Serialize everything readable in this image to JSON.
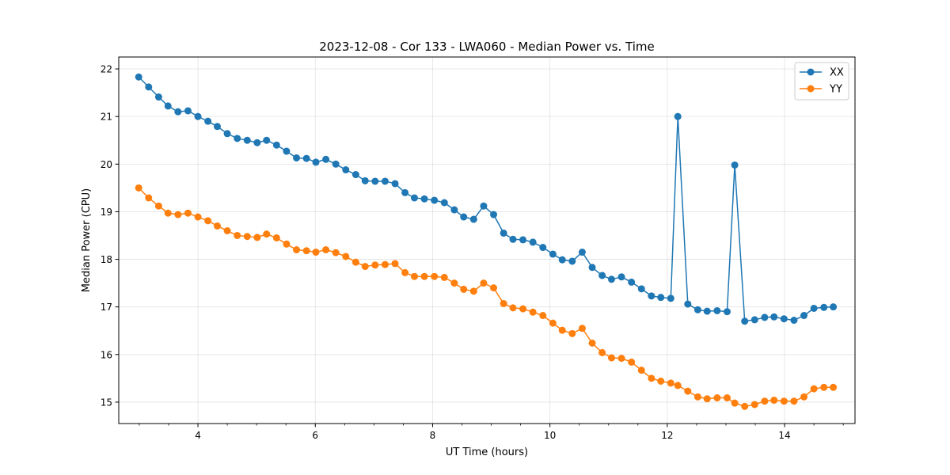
{
  "chart_data": {
    "type": "line",
    "title": "2023-12-08 - Cor 133 - LWA060 - Median Power vs. Time",
    "xlabel": "UT Time (hours)",
    "ylabel": "Median Power (CPU)",
    "xlim": [
      2.65,
      15.2
    ],
    "ylim": [
      14.55,
      22.25
    ],
    "xticks": [
      4,
      6,
      8,
      10,
      12,
      14
    ],
    "yticks": [
      15,
      16,
      17,
      18,
      19,
      20,
      21,
      22
    ],
    "grid": true,
    "legend_position": "top-right",
    "x": [
      2.99,
      3.16,
      3.33,
      3.49,
      3.66,
      3.83,
      4.0,
      4.17,
      4.33,
      4.5,
      4.67,
      4.84,
      5.01,
      5.17,
      5.34,
      5.51,
      5.68,
      5.85,
      6.01,
      6.18,
      6.35,
      6.52,
      6.69,
      6.85,
      7.02,
      7.19,
      7.36,
      7.53,
      7.69,
      7.86,
      8.03,
      8.2,
      8.37,
      8.53,
      8.7,
      8.87,
      9.04,
      9.21,
      9.37,
      9.54,
      9.71,
      9.88,
      10.05,
      10.21,
      10.38,
      10.55,
      10.72,
      10.89,
      11.05,
      11.22,
      11.39,
      11.56,
      11.73,
      11.89,
      12.06,
      12.18,
      12.35,
      12.52,
      12.68,
      12.85,
      13.02,
      13.15,
      13.32,
      13.49,
      13.66,
      13.82,
      13.99,
      14.16,
      14.33,
      14.5,
      14.67,
      14.83
    ],
    "series": [
      {
        "name": "XX",
        "color": "#1f77b4",
        "values": [
          21.83,
          21.62,
          21.41,
          21.22,
          21.1,
          21.12,
          21.0,
          20.9,
          20.79,
          20.64,
          20.54,
          20.5,
          20.45,
          20.5,
          20.4,
          20.27,
          20.13,
          20.12,
          20.04,
          20.1,
          20.0,
          19.88,
          19.78,
          19.65,
          19.64,
          19.64,
          19.59,
          19.4,
          19.29,
          19.27,
          19.24,
          19.19,
          19.04,
          18.89,
          18.84,
          19.12,
          18.94,
          18.55,
          18.42,
          18.41,
          18.36,
          18.25,
          18.11,
          17.99,
          17.96,
          18.15,
          17.83,
          17.66,
          17.58,
          17.63,
          17.52,
          17.38,
          17.23,
          17.2,
          17.18,
          21.0,
          17.06,
          16.94,
          16.91,
          16.92,
          16.9,
          19.98,
          16.7,
          16.73,
          16.78,
          16.79,
          16.75,
          16.72,
          16.82,
          16.97,
          16.99,
          17.0
        ]
      },
      {
        "name": "YY",
        "color": "#ff7f0e",
        "values": [
          19.5,
          19.29,
          19.12,
          18.97,
          18.94,
          18.97,
          18.89,
          18.81,
          18.7,
          18.6,
          18.5,
          18.48,
          18.46,
          18.53,
          18.45,
          18.32,
          18.2,
          18.18,
          18.15,
          18.2,
          18.14,
          18.06,
          17.94,
          17.85,
          17.88,
          17.89,
          17.91,
          17.72,
          17.64,
          17.64,
          17.64,
          17.62,
          17.5,
          17.37,
          17.33,
          17.5,
          17.4,
          17.07,
          16.98,
          16.96,
          16.89,
          16.82,
          16.66,
          16.51,
          16.44,
          16.55,
          16.24,
          16.04,
          15.93,
          15.92,
          15.84,
          15.67,
          15.5,
          15.44,
          15.4,
          15.35,
          15.23,
          15.11,
          15.07,
          15.09,
          15.09,
          14.98,
          14.91,
          14.95,
          15.02,
          15.04,
          15.02,
          15.02,
          15.11,
          15.28,
          15.31,
          15.31
        ]
      }
    ]
  }
}
